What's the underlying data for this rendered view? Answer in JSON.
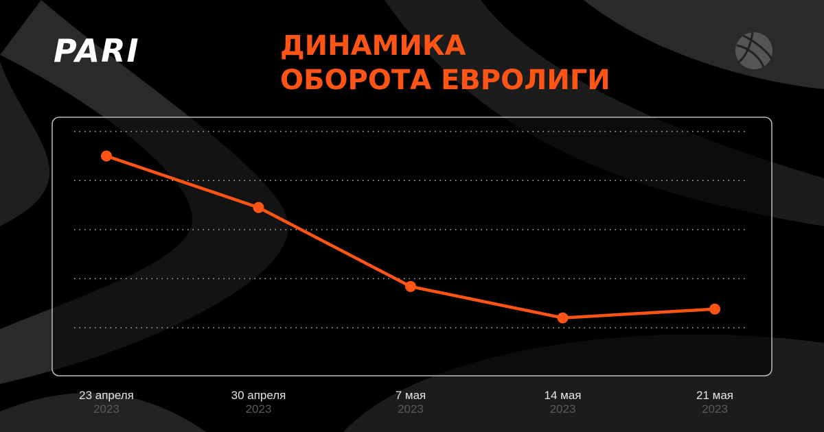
{
  "logo": "PARI",
  "chart_data": {
    "type": "line",
    "title": [
      "ДИНАМИКА",
      "ОБОРОТА ЕВРОЛИГИ"
    ],
    "categories": [
      "23 апреля",
      "30 апреля",
      "7 мая",
      "14 мая",
      "21 мая"
    ],
    "years": [
      "2023",
      "2023",
      "2023",
      "2023",
      "2023"
    ],
    "values": [
      3.5,
      2.45,
      0.84,
      0.2,
      0.38
    ],
    "color": "#fe5516",
    "ylim": [
      -0.98,
      4.29
    ],
    "yticks": [
      0,
      1,
      2,
      3,
      4
    ],
    "grid": true
  }
}
